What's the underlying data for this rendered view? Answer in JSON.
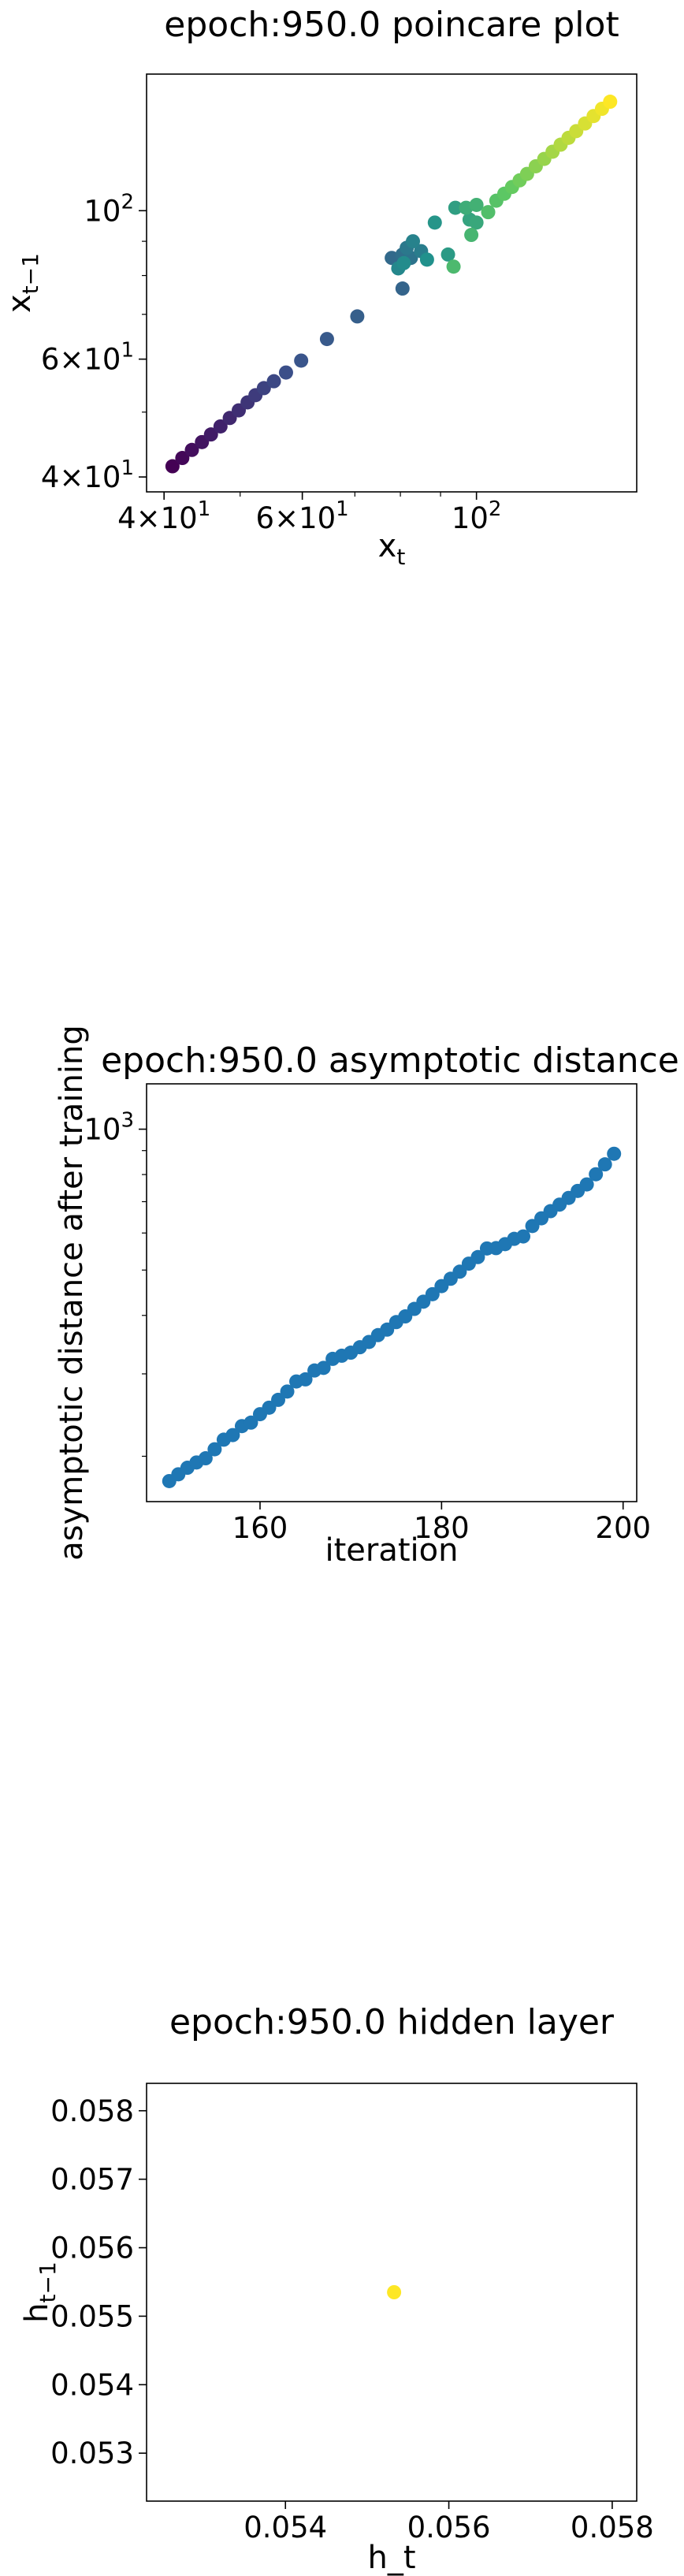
{
  "chart_data": [
    {
      "type": "scatter",
      "title": "epoch:950.0 poincare plot",
      "xlabel_base": "x",
      "xlabel_sub": "t",
      "ylabel_base": "x",
      "ylabel_sub": "t−1",
      "xscale": "log",
      "yscale": "log",
      "xlim": [
        38,
        160
      ],
      "ylim": [
        38,
        160
      ],
      "grid": false,
      "legend": "none",
      "colormap": "viridis",
      "xticks": [
        {
          "value": 40,
          "mantissa": "4×10",
          "exp": "1"
        },
        {
          "value": 60,
          "mantissa": "6×10",
          "exp": "1"
        },
        {
          "value": 100,
          "mantissa": "10",
          "exp": "2"
        }
      ],
      "yticks": [
        {
          "value": 40,
          "mantissa": "4×10",
          "exp": "1"
        },
        {
          "value": 60,
          "mantissa": "6×10",
          "exp": "1"
        },
        {
          "value": 100,
          "mantissa": "10",
          "exp": "2"
        }
      ],
      "points": [
        {
          "x": 41,
          "y": 41.5
        },
        {
          "x": 42.2,
          "y": 42.7
        },
        {
          "x": 43.4,
          "y": 43.9
        },
        {
          "x": 44.7,
          "y": 45.1
        },
        {
          "x": 45.9,
          "y": 46.3
        },
        {
          "x": 47.2,
          "y": 47.6
        },
        {
          "x": 48.5,
          "y": 49
        },
        {
          "x": 49.8,
          "y": 50.3
        },
        {
          "x": 51.1,
          "y": 51.7
        },
        {
          "x": 52.3,
          "y": 53
        },
        {
          "x": 53.6,
          "y": 54.3
        },
        {
          "x": 55.2,
          "y": 55.6
        },
        {
          "x": 57.2,
          "y": 57.3
        },
        {
          "x": 59.8,
          "y": 59.7
        },
        {
          "x": 64.5,
          "y": 64.3
        },
        {
          "x": 70.5,
          "y": 69.5
        },
        {
          "x": 80.5,
          "y": 76.5
        },
        {
          "x": 78,
          "y": 85
        },
        {
          "x": 80.5,
          "y": 86
        },
        {
          "x": 82.5,
          "y": 85
        },
        {
          "x": 81.5,
          "y": 88
        },
        {
          "x": 85,
          "y": 87
        },
        {
          "x": 83,
          "y": 90
        },
        {
          "x": 79.5,
          "y": 82
        },
        {
          "x": 80.8,
          "y": 83.5
        },
        {
          "x": 86.5,
          "y": 84.5
        },
        {
          "x": 88.5,
          "y": 96
        },
        {
          "x": 92,
          "y": 86
        },
        {
          "x": 94,
          "y": 101
        },
        {
          "x": 98,
          "y": 97
        },
        {
          "x": 100,
          "y": 96
        },
        {
          "x": 97,
          "y": 101
        },
        {
          "x": 100,
          "y": 102
        },
        {
          "x": 98.5,
          "y": 92
        },
        {
          "x": 93.5,
          "y": 82.5
        },
        {
          "x": 103.5,
          "y": 99.5
        },
        {
          "x": 106,
          "y": 103.5
        },
        {
          "x": 108.5,
          "y": 106
        },
        {
          "x": 111,
          "y": 108.5
        },
        {
          "x": 113.5,
          "y": 111
        },
        {
          "x": 116,
          "y": 113.5
        },
        {
          "x": 119,
          "y": 116.5
        },
        {
          "x": 122,
          "y": 119.5
        },
        {
          "x": 125,
          "y": 122.5
        },
        {
          "x": 128,
          "y": 125.5
        },
        {
          "x": 131,
          "y": 128.5
        },
        {
          "x": 134,
          "y": 131.5
        },
        {
          "x": 137.5,
          "y": 135
        },
        {
          "x": 141,
          "y": 138.5
        },
        {
          "x": 144.5,
          "y": 142
        },
        {
          "x": 148,
          "y": 145.5
        }
      ]
    },
    {
      "type": "scatter",
      "title": "epoch:950.0 asymptotic distance",
      "xlabel": "iteration",
      "ylabel": "asymptotic distance after training",
      "xscale": "linear",
      "yscale": "log",
      "xlim": [
        147.5,
        201.5
      ],
      "ylim": [
        160,
        1250
      ],
      "grid": false,
      "legend": "none",
      "color": "#1f77b4",
      "xticks": [
        {
          "value": 160,
          "label": "160"
        },
        {
          "value": 180,
          "label": "180"
        },
        {
          "value": 200,
          "label": "200"
        }
      ],
      "yticks": [
        {
          "value": 1000,
          "mantissa": "10",
          "exp": "3"
        }
      ],
      "x": [
        150,
        151,
        152,
        153,
        154,
        155,
        156,
        157,
        158,
        159,
        160,
        161,
        162,
        163,
        164,
        165,
        166,
        167,
        168,
        169,
        170,
        171,
        172,
        173,
        174,
        175,
        176,
        177,
        178,
        179,
        180,
        181,
        182,
        183,
        184,
        185,
        186,
        187,
        188,
        189,
        190,
        191,
        192,
        193,
        194,
        195,
        196,
        197,
        198,
        199
      ],
      "y": [
        177,
        183,
        189,
        194,
        198,
        207,
        217,
        222,
        232,
        236,
        246,
        254,
        264,
        275,
        289,
        292,
        305,
        309,
        323,
        328,
        333,
        342,
        351,
        363,
        373,
        387,
        398,
        413,
        428,
        444,
        462,
        479,
        496,
        516,
        533,
        556,
        557,
        568,
        583,
        590,
        621,
        645,
        668,
        690,
        713,
        738,
        762,
        801,
        841,
        886
      ]
    },
    {
      "type": "scatter",
      "title": "epoch:950.0 hidden layer",
      "xlabel": "h_t",
      "ylabel_base": "h",
      "ylabel_sub": "t−1",
      "xscale": "linear",
      "yscale": "linear",
      "xlim": [
        0.0523,
        0.0583
      ],
      "ylim": [
        0.0523,
        0.0584
      ],
      "grid": false,
      "legend": "none",
      "color": "#fde725",
      "xticks": [
        {
          "value": 0.054,
          "label": "0.054"
        },
        {
          "value": 0.056,
          "label": "0.056"
        },
        {
          "value": 0.058,
          "label": "0.058"
        }
      ],
      "yticks": [
        {
          "value": 0.053,
          "label": "0.053"
        },
        {
          "value": 0.054,
          "label": "0.054"
        },
        {
          "value": 0.055,
          "label": "0.055"
        },
        {
          "value": 0.056,
          "label": "0.056"
        },
        {
          "value": 0.057,
          "label": "0.057"
        },
        {
          "value": 0.058,
          "label": "0.058"
        }
      ],
      "points": [
        {
          "x": 0.05533,
          "y": 0.05535
        }
      ]
    }
  ]
}
